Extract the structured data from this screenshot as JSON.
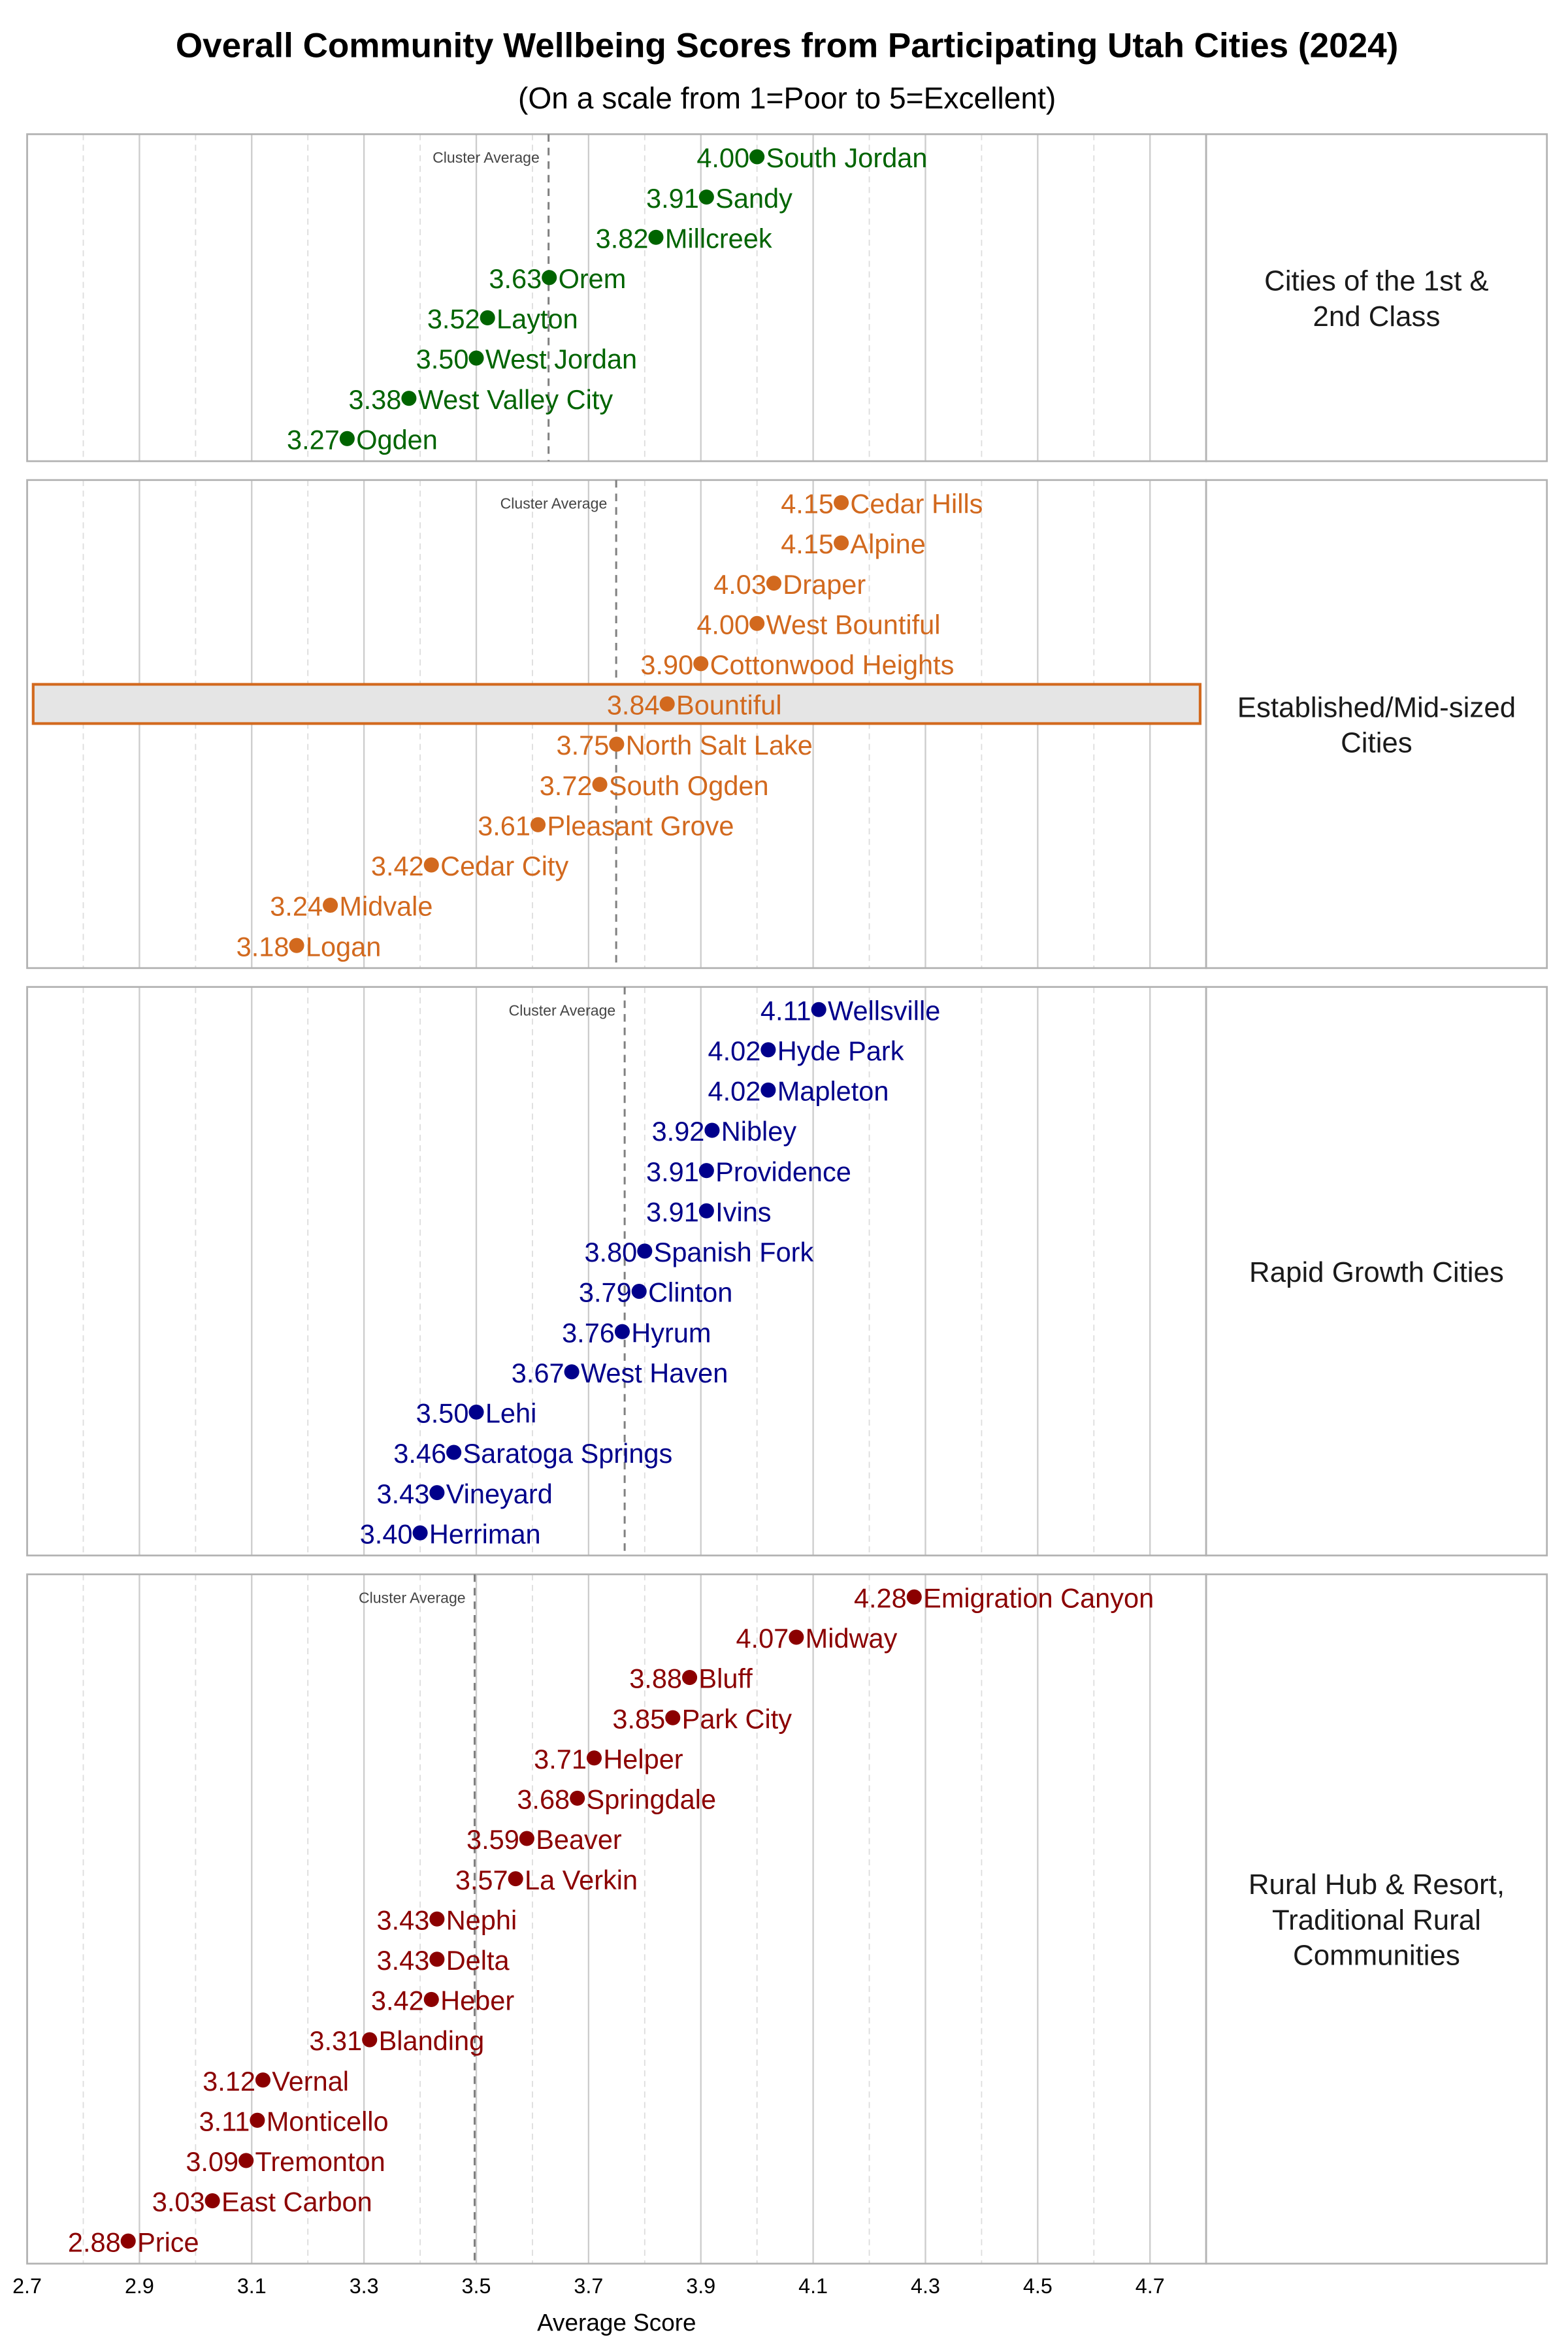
{
  "chart_data": {
    "type": "scatter",
    "title": "Overall Community Wellbeing Scores from Participating Utah Cities (2024)",
    "subtitle": "(On a scale from 1=Poor to 5=Excellent)",
    "xlabel": "Average Score",
    "xlim": [
      2.7,
      4.8
    ],
    "xticks": [
      "2.7",
      "2.9",
      "3.1",
      "3.3",
      "3.5",
      "3.7",
      "3.9",
      "4.1",
      "4.3",
      "4.5",
      "4.7"
    ],
    "grid": true,
    "reference_line_label": "Cluster Average",
    "highlighted_city": "Bountiful",
    "panels": [
      {
        "name": "Cities of the 1st & 2nd Class",
        "color": "#006400",
        "cities": [
          [
            "South Jordan",
            4.0
          ],
          [
            "Sandy",
            3.91
          ],
          [
            "Millcreek",
            3.82
          ],
          [
            "Orem",
            3.63
          ],
          [
            "Layton",
            3.52
          ],
          [
            "West Jordan",
            3.5
          ],
          [
            "West Valley City",
            3.38
          ],
          [
            "Ogden",
            3.27
          ]
        ]
      },
      {
        "name": "Established/Mid-sized Cities",
        "color": "#d2691e",
        "cities": [
          [
            "Cedar Hills",
            4.15
          ],
          [
            "Alpine",
            4.15
          ],
          [
            "Draper",
            4.03
          ],
          [
            "West Bountiful",
            4.0
          ],
          [
            "Cottonwood Heights",
            3.9
          ],
          [
            "Bountiful",
            3.84
          ],
          [
            "North Salt Lake",
            3.75
          ],
          [
            "South Ogden",
            3.72
          ],
          [
            "Pleasant Grove",
            3.61
          ],
          [
            "Cedar City",
            3.42
          ],
          [
            "Midvale",
            3.24
          ],
          [
            "Logan",
            3.18
          ]
        ]
      },
      {
        "name": "Rapid Growth Cities",
        "color": "#00008b",
        "cities": [
          [
            "Wellsville",
            4.11
          ],
          [
            "Hyde Park",
            4.02
          ],
          [
            "Mapleton",
            4.02
          ],
          [
            "Nibley",
            3.92
          ],
          [
            "Providence",
            3.91
          ],
          [
            "Ivins",
            3.91
          ],
          [
            "Spanish Fork",
            3.8
          ],
          [
            "Clinton",
            3.79
          ],
          [
            "Hyrum",
            3.76
          ],
          [
            "West Haven",
            3.67
          ],
          [
            "Lehi",
            3.5
          ],
          [
            "Saratoga Springs",
            3.46
          ],
          [
            "Vineyard",
            3.43
          ],
          [
            "Herriman",
            3.4
          ]
        ]
      },
      {
        "name": "Rural Hub & Resort, Traditional Rural Communities",
        "color": "#8b0000",
        "cities": [
          [
            "Emigration Canyon",
            4.28
          ],
          [
            "Midway",
            4.07
          ],
          [
            "Bluff",
            3.88
          ],
          [
            "Park City",
            3.85
          ],
          [
            "Helper",
            3.71
          ],
          [
            "Springdale",
            3.68
          ],
          [
            "Beaver",
            3.59
          ],
          [
            "La Verkin",
            3.57
          ],
          [
            "Nephi",
            3.43
          ],
          [
            "Delta",
            3.43
          ],
          [
            "Heber",
            3.42
          ],
          [
            "Blanding",
            3.31
          ],
          [
            "Vernal",
            3.12
          ],
          [
            "Monticello",
            3.11
          ],
          [
            "Tremonton",
            3.09
          ],
          [
            "East Carbon",
            3.03
          ],
          [
            "Price",
            2.88
          ]
        ]
      }
    ]
  }
}
